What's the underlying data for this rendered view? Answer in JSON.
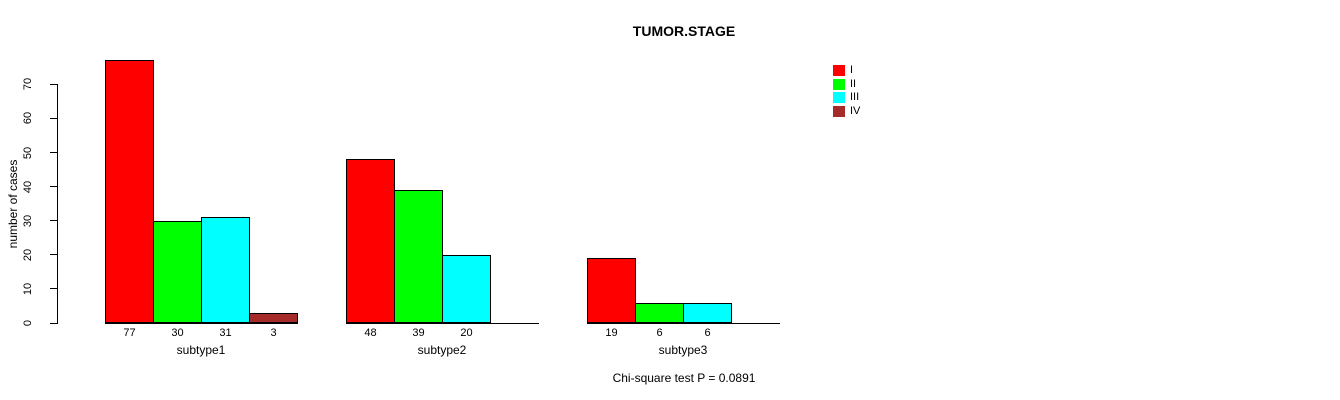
{
  "title": "TUMOR.STAGE",
  "footnote": "Chi-square test P = 0.0891",
  "chart_data": {
    "type": "bar",
    "title": "TUMOR.STAGE",
    "xlabel": "",
    "ylabel": "number of cases",
    "ylim": [
      0,
      77
    ],
    "yticks": [
      0,
      10,
      20,
      30,
      40,
      50,
      60,
      70
    ],
    "grid": false,
    "legend_position": "top-right",
    "categories": [
      "subtype1",
      "subtype2",
      "subtype3"
    ],
    "series": [
      {
        "name": "I",
        "color": "#FF0000",
        "values": [
          77,
          48,
          19
        ]
      },
      {
        "name": "II",
        "color": "#00FF00",
        "values": [
          30,
          39,
          6
        ]
      },
      {
        "name": "III",
        "color": "#00FFFF",
        "values": [
          31,
          20,
          6
        ]
      },
      {
        "name": "IV",
        "color": "#A52A2A",
        "values": [
          3,
          null,
          null
        ]
      }
    ],
    "bar_value_labels_shown": true,
    "annotation": "Chi-square test P = 0.0891"
  },
  "colors": {
    "background": "#FFFFFF",
    "axis": "#000000",
    "text": "#000000",
    "stage_I": "#FF0000",
    "stage_II": "#00FF00",
    "stage_III": "#00FFFF",
    "stage_IV": "#A52A2A"
  }
}
